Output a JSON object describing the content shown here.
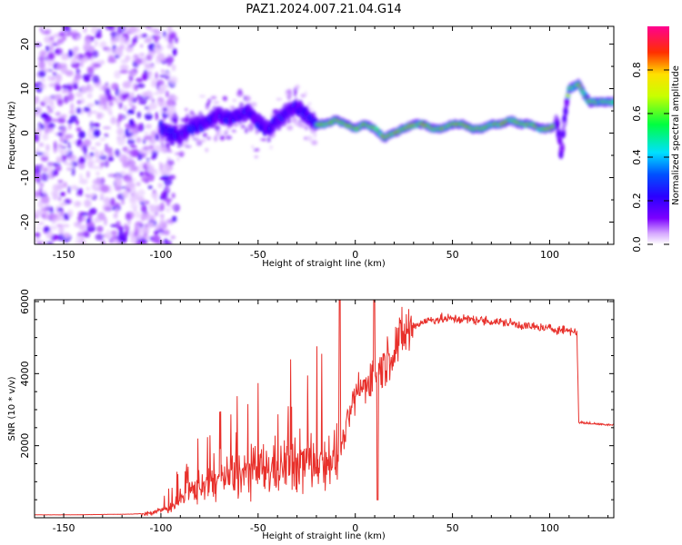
{
  "title": "PAZ1.2024.007.21.04.G14",
  "colors": {
    "snr_line": "#e8302b",
    "colormap": [
      "#ffffff",
      "#d6a8ff",
      "#7b00ff",
      "#2a00ff",
      "#0050ff",
      "#00e0ff",
      "#00ff40",
      "#c8ff00",
      "#ffe000",
      "#ff3000",
      "#ff0090"
    ]
  },
  "chart_data": [
    {
      "type": "heatmap",
      "title": "PAZ1.2024.007.21.04.G14",
      "xlabel": "Height of straight line (km)",
      "ylabel": "Frequency (Hz)",
      "xlim": [
        -165,
        133
      ],
      "ylim": [
        -25,
        24
      ],
      "x_ticks": [
        "-150",
        "-100",
        "-50",
        "0",
        "50",
        "100"
      ],
      "y_ticks": [
        "-20",
        "-10",
        "0",
        "10",
        "20"
      ],
      "colorbar": {
        "label": "Normalized spectral amplitude",
        "range": [
          0,
          1
        ],
        "ticks": [
          "0.0",
          "0.2",
          "0.4",
          "0.6",
          "0.8"
        ]
      },
      "ridge_frequency": {
        "x": [
          -100,
          -95,
          -90,
          -85,
          -80,
          -75,
          -70,
          -65,
          -60,
          -55,
          -50,
          -45,
          -40,
          -35,
          -30,
          -25,
          -20,
          -15,
          -10,
          -5,
          0,
          5,
          10,
          15,
          20,
          25,
          30,
          35,
          40,
          45,
          50,
          55,
          60,
          65,
          70,
          75,
          80,
          85,
          90,
          95,
          100,
          104,
          106,
          108,
          110,
          115,
          120,
          125,
          133
        ],
        "y": [
          1,
          0,
          -1,
          1,
          2,
          3,
          4,
          3,
          4,
          5,
          2,
          1,
          3,
          5,
          6,
          4,
          2,
          2,
          3,
          2,
          1,
          2,
          1,
          -1,
          0,
          1,
          2,
          2,
          1,
          1,
          2,
          2,
          1,
          1,
          2,
          2,
          3,
          2,
          2,
          1,
          1,
          2,
          -5,
          5,
          10,
          11,
          7,
          7,
          7
        ]
      },
      "grid": false
    },
    {
      "type": "line",
      "xlabel": "Height of straight line (km)",
      "ylabel": "SNR (10 * v/v)",
      "xlim": [
        -165,
        133
      ],
      "ylim": [
        0,
        6050
      ],
      "x_ticks": [
        "-150",
        "-100",
        "-50",
        "0",
        "50",
        "100"
      ],
      "y_ticks": [
        "2000",
        "4000",
        "6000"
      ],
      "series": [
        {
          "x": [
            -165,
            -150,
            -130,
            -115,
            -105,
            -100,
            -95,
            -90,
            -85,
            -80,
            -75,
            -70,
            -65,
            -60,
            -55,
            -50,
            -45,
            -40,
            -35,
            -30,
            -25,
            -20,
            -15,
            -10,
            -8,
            -5,
            0,
            5,
            8,
            10,
            12,
            15,
            20,
            25,
            30,
            35,
            40,
            50,
            60,
            70,
            80,
            90,
            100,
            110,
            114,
            115,
            120,
            125,
            133
          ],
          "y": [
            80,
            80,
            90,
            100,
            130,
            200,
            300,
            500,
            700,
            900,
            1000,
            1050,
            1150,
            1200,
            1250,
            1300,
            1350,
            1400,
            1450,
            1500,
            1550,
            1600,
            1650,
            1700,
            1800,
            2400,
            3400,
            3700,
            3900,
            4000,
            4100,
            4300,
            4700,
            5100,
            5300,
            5450,
            5500,
            5520,
            5500,
            5450,
            5400,
            5300,
            5250,
            5200,
            5150,
            2650,
            2620,
            2600,
            2580
          ]
        }
      ],
      "grid": false
    }
  ]
}
